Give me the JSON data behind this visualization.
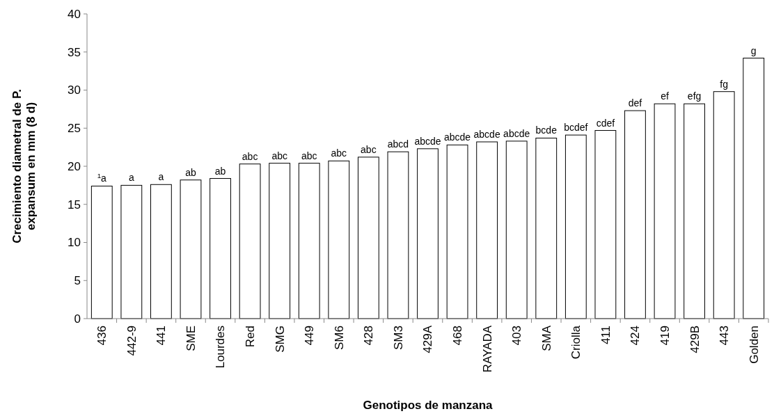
{
  "chart_data": {
    "type": "bar",
    "xlabel": "Genotipos de manzana",
    "ylabel": "Crecimiento diametral de P. expansum en mm (8 d)",
    "categories": [
      "436",
      "442-9",
      "441",
      "SME",
      "Lourdes",
      "Red",
      "SMG",
      "449",
      "SM6",
      "428",
      "SM3",
      "429A",
      "468",
      "RAYADA",
      "403",
      "SMA",
      "Criolla",
      "411",
      "424",
      "419",
      "429B",
      "443",
      "Golden"
    ],
    "values": [
      17.4,
      17.5,
      17.6,
      18.2,
      18.4,
      20.3,
      20.4,
      20.4,
      20.7,
      21.2,
      21.9,
      22.3,
      22.8,
      23.2,
      23.3,
      23.7,
      24.1,
      24.7,
      27.3,
      28.2,
      28.2,
      29.8,
      34.2
    ],
    "color": "#ffffff",
    "ylim": [
      0,
      40
    ],
    "yticks": [
      0,
      5,
      10,
      15,
      20,
      25,
      30,
      35,
      40
    ],
    "grid": false,
    "annotations": [
      {
        "text": "$^{1}$a",
        "x": "436",
        "y": 17.4
      },
      {
        "text": "a",
        "x": "442-9",
        "y": 17.5
      },
      {
        "text": "a",
        "x": "441",
        "y": 17.6
      },
      {
        "text": "ab",
        "x": "SME",
        "y": 18.2
      },
      {
        "text": "ab",
        "x": "Lourdes",
        "y": 18.4
      },
      {
        "text": "abc",
        "x": "Red",
        "y": 20.3
      },
      {
        "text": "abc",
        "x": "SMG",
        "y": 20.4
      },
      {
        "text": "abc",
        "x": "449",
        "y": 20.4
      },
      {
        "text": "abc",
        "x": "SM6",
        "y": 20.7
      },
      {
        "text": "abc",
        "x": "428",
        "y": 21.2
      },
      {
        "text": "abcd",
        "x": "SM3",
        "y": 21.9
      },
      {
        "text": "abcde",
        "x": "429A",
        "y": 22.3
      },
      {
        "text": "abcde",
        "x": "468",
        "y": 22.8
      },
      {
        "text": "abcde",
        "x": "RAYADA",
        "y": 23.2
      },
      {
        "text": "abcde",
        "x": "403",
        "y": 23.3
      },
      {
        "text": "bcde",
        "x": "SMA",
        "y": 23.7
      },
      {
        "text": "bcdef",
        "x": "Criolla",
        "y": 24.1
      },
      {
        "text": "cdef",
        "x": "411",
        "y": 24.7
      },
      {
        "text": "def",
        "x": "424",
        "y": 27.3
      },
      {
        "text": "ef",
        "x": "419",
        "y": 28.2
      },
      {
        "text": "efg",
        "x": "429B",
        "y": 28.2
      },
      {
        "text": "fg",
        "x": "443",
        "y": 29.8
      },
      {
        "text": "g",
        "x": "Golden",
        "y": 34.2
      }
    ]
  }
}
